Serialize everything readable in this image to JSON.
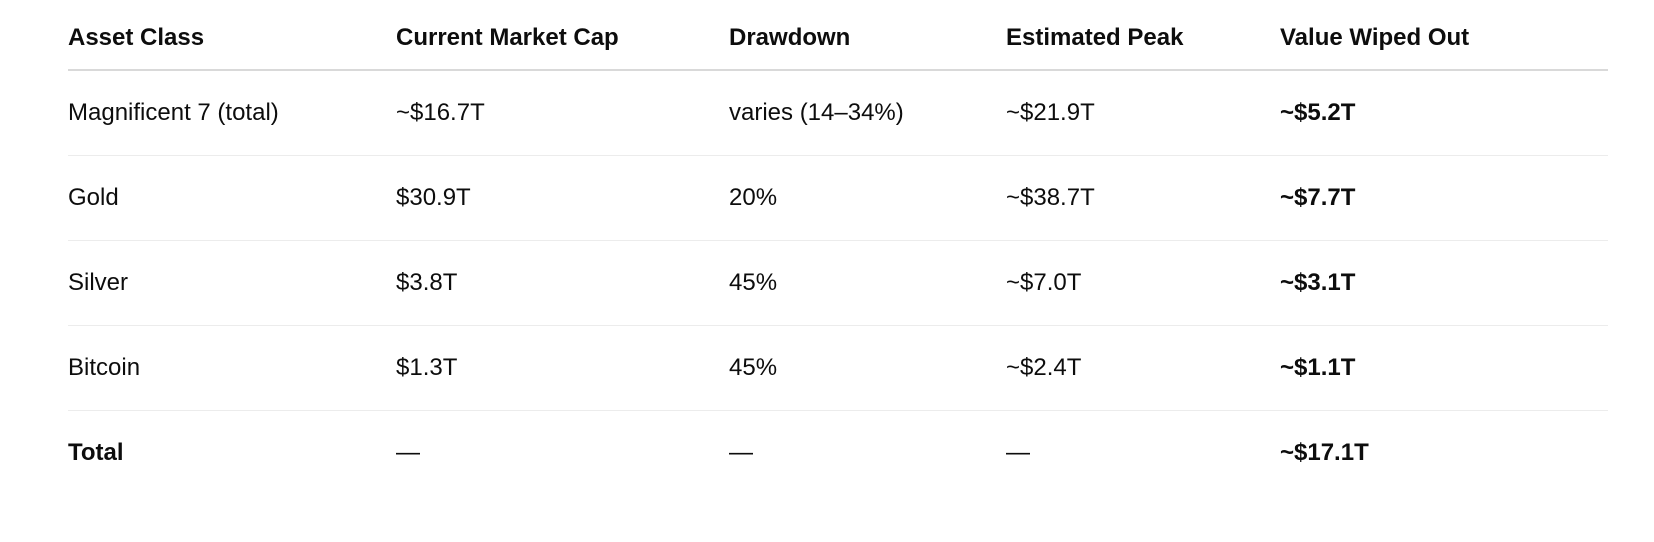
{
  "chart_data": {
    "type": "table",
    "columns": [
      "Asset Class",
      "Current Market Cap",
      "Drawdown",
      "Estimated Peak",
      "Value Wiped Out"
    ],
    "rows": [
      [
        "Magnificent 7 (total)",
        "~$16.7T",
        "varies (14–34%)",
        "~$21.9T",
        "~$5.2T"
      ],
      [
        "Gold",
        "$30.9T",
        "20%",
        "~$38.7T",
        "~$7.7T"
      ],
      [
        "Silver",
        "$3.8T",
        "45%",
        "~$7.0T",
        "~$3.1T"
      ],
      [
        "Bitcoin",
        "$1.3T",
        "45%",
        "~$2.4T",
        "~$1.1T"
      ],
      [
        "Total",
        "—",
        "—",
        "—",
        "~$17.1T"
      ]
    ],
    "bold_columns": [
      "Value Wiped Out"
    ],
    "bold_row_labels": [
      "Total"
    ]
  },
  "colors": {
    "text": "#0d0d0d",
    "background": "#ffffff",
    "header_rule": "#d9d9d9",
    "row_rule": "#ececec"
  }
}
